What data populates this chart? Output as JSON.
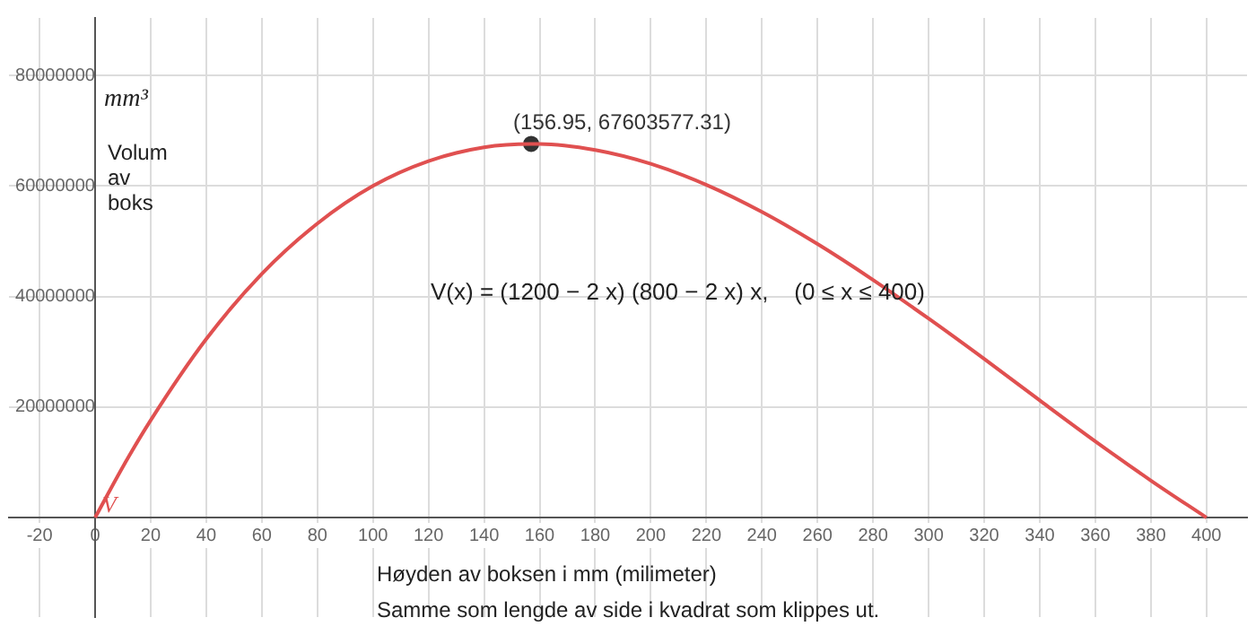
{
  "chart_data": {
    "type": "line",
    "xlabel": "Høyden av boksen i mm (milimeter)",
    "ylabel": "Volum av boks",
    "annotations": [
      "mm³",
      "V(x) = (1200 − 2 x) (800 − 2 x) x,    (0 ≤ x ≤ 400)",
      "Samme som lengde av side i kvadrat som klippes ut.",
      {
        "text": "(156.95, 67603577.31)",
        "x": 156.95,
        "y": 67603577.31
      }
    ],
    "series": [
      {
        "name": "V",
        "type": "line",
        "color": "#e05050",
        "marker": "none",
        "x": [
          0,
          10,
          20,
          40,
          60,
          80,
          100,
          120,
          140,
          156.95,
          160,
          180,
          200,
          220,
          240,
          260,
          280,
          300,
          320,
          340,
          360,
          380,
          400
        ],
        "values": [
          0,
          9200000,
          17600000,
          32300000,
          44100000,
          53200000,
          60000000,
          64500000,
          67000000,
          67600000,
          67600000,
          66500000,
          64000000,
          60200000,
          55300000,
          49500000,
          43000000,
          36000000,
          28700000,
          21200000,
          13800000,
          6700000,
          0
        ]
      },
      {
        "type": "scatter",
        "color": "#333333",
        "marker": "circle",
        "x": [
          156.95
        ],
        "values": [
          67603577.31
        ]
      }
    ],
    "xlim": [
      -31,
      414.6
    ],
    "ylim": [
      -18000000,
      90400000
    ],
    "xticks": [
      -20,
      0,
      20,
      40,
      60,
      80,
      100,
      120,
      140,
      160,
      180,
      200,
      220,
      240,
      260,
      280,
      300,
      320,
      340,
      360,
      380,
      400
    ],
    "yticks": [
      {
        "value": 0,
        "label": null
      },
      20000000,
      40000000,
      60000000,
      80000000
    ],
    "grid": true,
    "legend": false
  }
}
